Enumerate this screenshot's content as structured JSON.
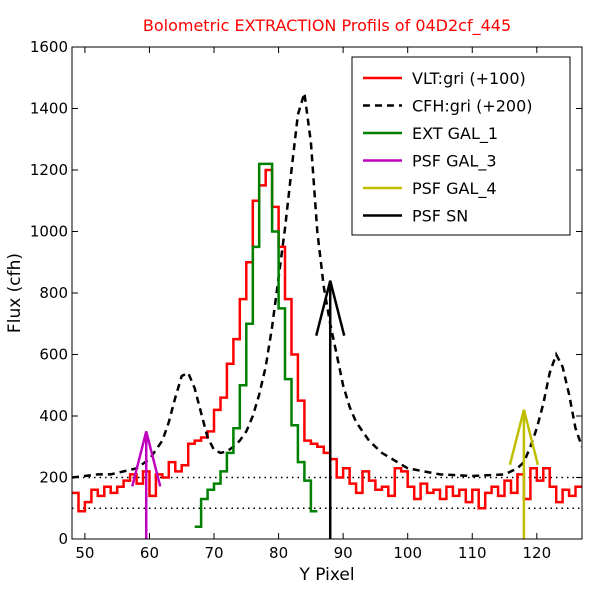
{
  "chart_data": {
    "type": "line",
    "title": "Bolometric EXTRACTION Profils of 04D2cf_445",
    "xlabel": "Y Pixel",
    "ylabel": "Flux (cfh)",
    "xlim": [
      48,
      127
    ],
    "ylim": [
      0,
      1600
    ],
    "xticks": [
      50,
      60,
      70,
      80,
      90,
      100,
      110,
      120
    ],
    "yticks": [
      0,
      200,
      400,
      600,
      800,
      1000,
      1200,
      1400,
      1600
    ],
    "grid": false,
    "legend_position": "top-right",
    "series": [
      {
        "name": "VLT:gri (+100)",
        "style": "step",
        "color": "#ff0000",
        "x": [
          48,
          49,
          50,
          51,
          52,
          53,
          54,
          55,
          56,
          57,
          58,
          59,
          60,
          61,
          62,
          63,
          64,
          65,
          66,
          67,
          68,
          69,
          70,
          71,
          72,
          73,
          74,
          75,
          76,
          77,
          78,
          79,
          80,
          81,
          82,
          83,
          84,
          85,
          86,
          87,
          88,
          89,
          90,
          91,
          92,
          93,
          94,
          95,
          96,
          97,
          98,
          99,
          100,
          101,
          102,
          103,
          104,
          105,
          106,
          107,
          108,
          109,
          110,
          111,
          112,
          113,
          114,
          115,
          116,
          117,
          118,
          119,
          120,
          121,
          122,
          123,
          124,
          125,
          126
        ],
        "y": [
          150,
          90,
          120,
          160,
          140,
          170,
          150,
          170,
          190,
          210,
          180,
          220,
          140,
          210,
          200,
          250,
          220,
          240,
          310,
          320,
          330,
          350,
          420,
          460,
          570,
          650,
          780,
          900,
          1100,
          1150,
          1200,
          1080,
          950,
          780,
          600,
          450,
          320,
          310,
          300,
          280,
          260,
          200,
          230,
          180,
          150,
          220,
          190,
          160,
          170,
          140,
          230,
          220,
          170,
          130,
          180,
          150,
          160,
          130,
          170,
          140,
          160,
          120,
          160,
          100,
          150,
          170,
          140,
          190,
          150,
          210,
          130,
          230,
          190,
          230,
          170,
          120,
          160,
          140,
          170
        ]
      },
      {
        "name": "CFH:gri (+200)",
        "style": "dashed",
        "color": "#000000",
        "x": [
          48,
          50,
          52,
          54,
          56,
          58,
          60,
          62,
          63,
          64,
          65,
          66,
          67,
          68,
          69,
          70,
          71,
          72,
          73,
          74,
          75,
          76,
          77,
          78,
          79,
          80,
          81,
          82,
          83,
          84,
          85,
          86,
          87,
          88,
          89,
          90,
          91,
          92,
          94,
          96,
          98,
          100,
          105,
          110,
          115,
          117,
          118,
          119,
          120,
          121,
          122,
          123,
          124,
          125,
          126,
          127
        ],
        "y": [
          200,
          205,
          210,
          210,
          220,
          230,
          260,
          320,
          380,
          460,
          530,
          540,
          490,
          410,
          330,
          290,
          280,
          285,
          300,
          320,
          350,
          400,
          470,
          560,
          690,
          850,
          1010,
          1200,
          1380,
          1450,
          1290,
          1000,
          820,
          700,
          600,
          500,
          430,
          380,
          320,
          280,
          255,
          230,
          210,
          205,
          210,
          230,
          250,
          300,
          360,
          440,
          540,
          600,
          560,
          470,
          360,
          300
        ]
      },
      {
        "name": "EXT GAL_1",
        "style": "step",
        "color": "#008000",
        "x": [
          67,
          68,
          69,
          70,
          71,
          72,
          73,
          74,
          75,
          76,
          77,
          78,
          79,
          80,
          81,
          82,
          83,
          84,
          85
        ],
        "y": [
          40,
          130,
          160,
          180,
          220,
          280,
          360,
          500,
          700,
          950,
          1220,
          1220,
          1000,
          750,
          520,
          370,
          250,
          190,
          90
        ]
      }
    ],
    "markers": [
      {
        "name": "PSF GAL_3",
        "color": "#bf00bf",
        "x": 59.5,
        "y_base": 0,
        "y_tip": 350
      },
      {
        "name": "PSF GAL_4",
        "color": "#bfbf00",
        "x": 118,
        "y_base": 0,
        "y_tip": 420
      },
      {
        "name": "PSF SN",
        "color": "#000000",
        "x": 88,
        "y_base": 0,
        "y_tip": 840
      }
    ],
    "reference_lines": [
      {
        "y": 100,
        "style": "dotted"
      },
      {
        "y": 200,
        "style": "dotted"
      }
    ]
  }
}
